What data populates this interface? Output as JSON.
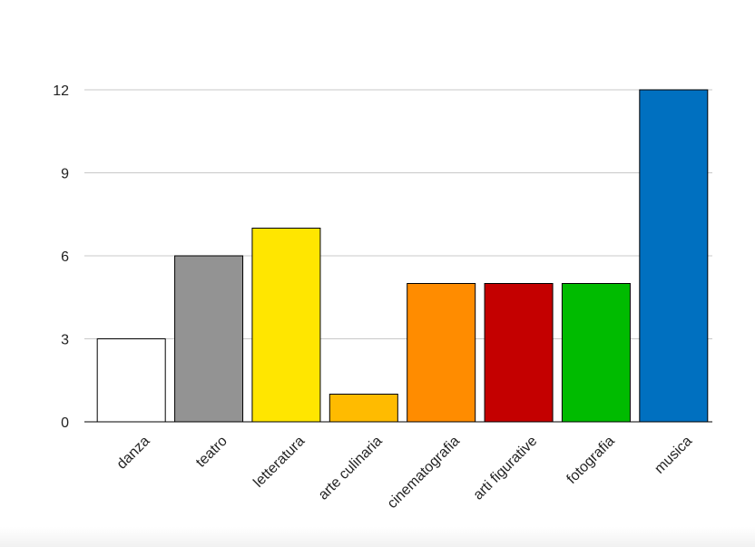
{
  "chart_data": {
    "type": "bar",
    "title": "",
    "xlabel": "",
    "ylabel": "",
    "categories": [
      "danza",
      "teatro",
      "letteratura",
      "arte culinaria",
      "cinematografia",
      "arti figurative",
      "fotografia",
      "musica"
    ],
    "values": [
      3,
      6,
      7,
      1,
      5,
      5,
      5,
      12
    ],
    "colors": [
      "#ffffff",
      "#939393",
      "#ffe600",
      "#ffbb00",
      "#ff8c00",
      "#c40000",
      "#00bb00",
      "#0070c0"
    ],
    "ylim": [
      0,
      12
    ],
    "yticks": [
      0,
      3,
      6,
      9,
      12
    ],
    "grid": true,
    "legend": "none"
  }
}
